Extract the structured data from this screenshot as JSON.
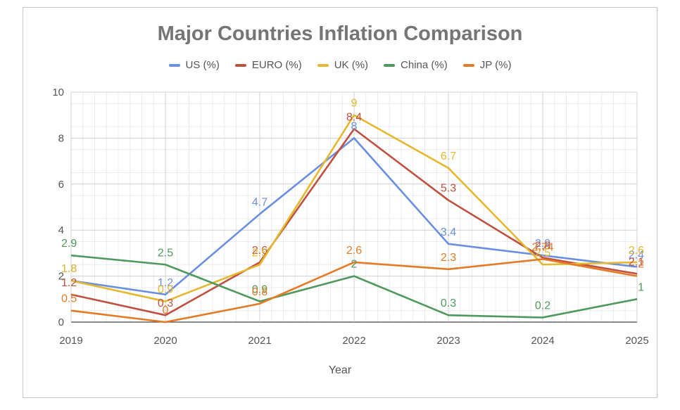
{
  "chart_data": {
    "type": "line",
    "title": "Major Countries Inflation Comparison",
    "xlabel": "Year",
    "ylabel": "",
    "ylim": [
      0,
      10
    ],
    "yticks": [
      "0",
      "2",
      "4",
      "6",
      "8",
      "10"
    ],
    "categories": [
      "2019",
      "2020",
      "2021",
      "2022",
      "2023",
      "2024",
      "2025"
    ],
    "legend_position": "top",
    "series": [
      {
        "name": "US (%)",
        "color": "#6a8fe0",
        "values": [
          1.8,
          1.2,
          4.7,
          8,
          3.4,
          2.9,
          2.4
        ],
        "labels": [
          "1.8",
          "1.2",
          "4.7",
          "8",
          "3.4",
          "2.9",
          "2.4"
        ]
      },
      {
        "name": "EURO (%)",
        "color": "#c0503f",
        "values": [
          1.2,
          0.3,
          2.6,
          8.4,
          5.3,
          2.8,
          2.1
        ],
        "labels": [
          "1.2",
          "0.3",
          "2.6",
          "8.4",
          "5.3",
          "2.8",
          "2.1"
        ]
      },
      {
        "name": "UK (%)",
        "color": "#e6b82e",
        "values": [
          1.8,
          0.9,
          2.5,
          9,
          6.7,
          2.5,
          2.6
        ],
        "labels": [
          "1.8",
          "0.9",
          "2.5",
          "9",
          "6.7",
          "2.5",
          "2.6"
        ]
      },
      {
        "name": "China (%)",
        "color": "#4e9a5c",
        "values": [
          2.9,
          2.5,
          0.9,
          2,
          0.3,
          0.2,
          1
        ],
        "labels": [
          "2.9",
          "2.5",
          "0.9",
          "2",
          "0.3",
          "0.2",
          "1"
        ]
      },
      {
        "name": "JP (%)",
        "color": "#e57a24",
        "values": [
          0.5,
          0,
          0.8,
          2.6,
          2.3,
          2.74,
          2
        ],
        "labels": [
          "0.5",
          "0",
          "0.8",
          "2.6",
          "2.3",
          "2.74",
          "2"
        ]
      }
    ]
  }
}
